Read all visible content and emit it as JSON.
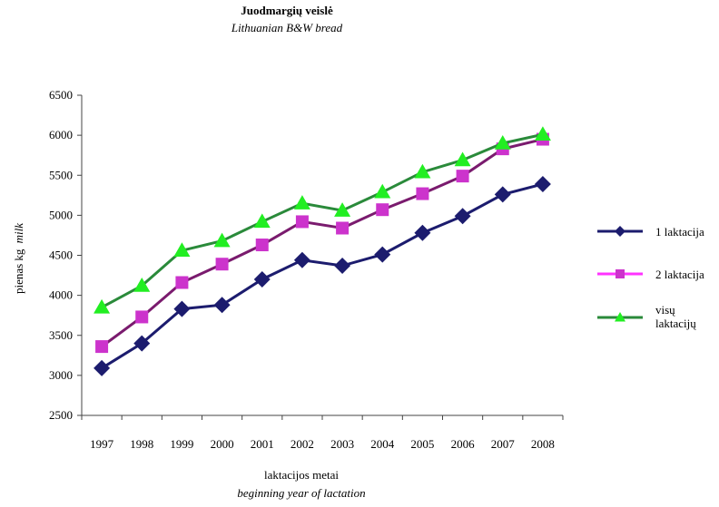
{
  "chart_data": {
    "type": "line",
    "title": "Juodmargių veislė",
    "subtitle": "Lithuanian B&W bread",
    "xlabel": "laktacijos metai",
    "xlabel_en": "beginning year of lactation",
    "ylabel_lt": "pienas kg",
    "ylabel_en": "milk",
    "ylim": [
      2500,
      6500
    ],
    "yticks": [
      2500,
      3000,
      3500,
      4000,
      4500,
      5000,
      5500,
      6000,
      6500
    ],
    "categories": [
      "1997",
      "1998",
      "1999",
      "2000",
      "2001",
      "2002",
      "2003",
      "2004",
      "2005",
      "2006",
      "2007",
      "2008"
    ],
    "grid": false,
    "legend_position": "right",
    "series": [
      {
        "name": "1 laktacija",
        "color": "#1c1c6e",
        "marker": "diamond",
        "values": [
          3090,
          3400,
          3830,
          3880,
          4200,
          4440,
          4370,
          4510,
          4780,
          4990,
          5260,
          5390
        ]
      },
      {
        "name": "2 laktacija",
        "line_color": "#7a1b6e",
        "color": "#cc33cc",
        "legend_line_color": "#ff33ff",
        "marker": "square",
        "values": [
          3360,
          3730,
          4160,
          4390,
          4630,
          4920,
          4840,
          5070,
          5270,
          5490,
          5830,
          5950
        ]
      },
      {
        "name": "visų laktacijų",
        "line_color": "#2a8a3a",
        "color": "#22ee22",
        "marker": "triangle",
        "values": [
          3850,
          4120,
          4560,
          4680,
          4920,
          5150,
          5060,
          5290,
          5540,
          5690,
          5900,
          6010
        ]
      }
    ]
  }
}
